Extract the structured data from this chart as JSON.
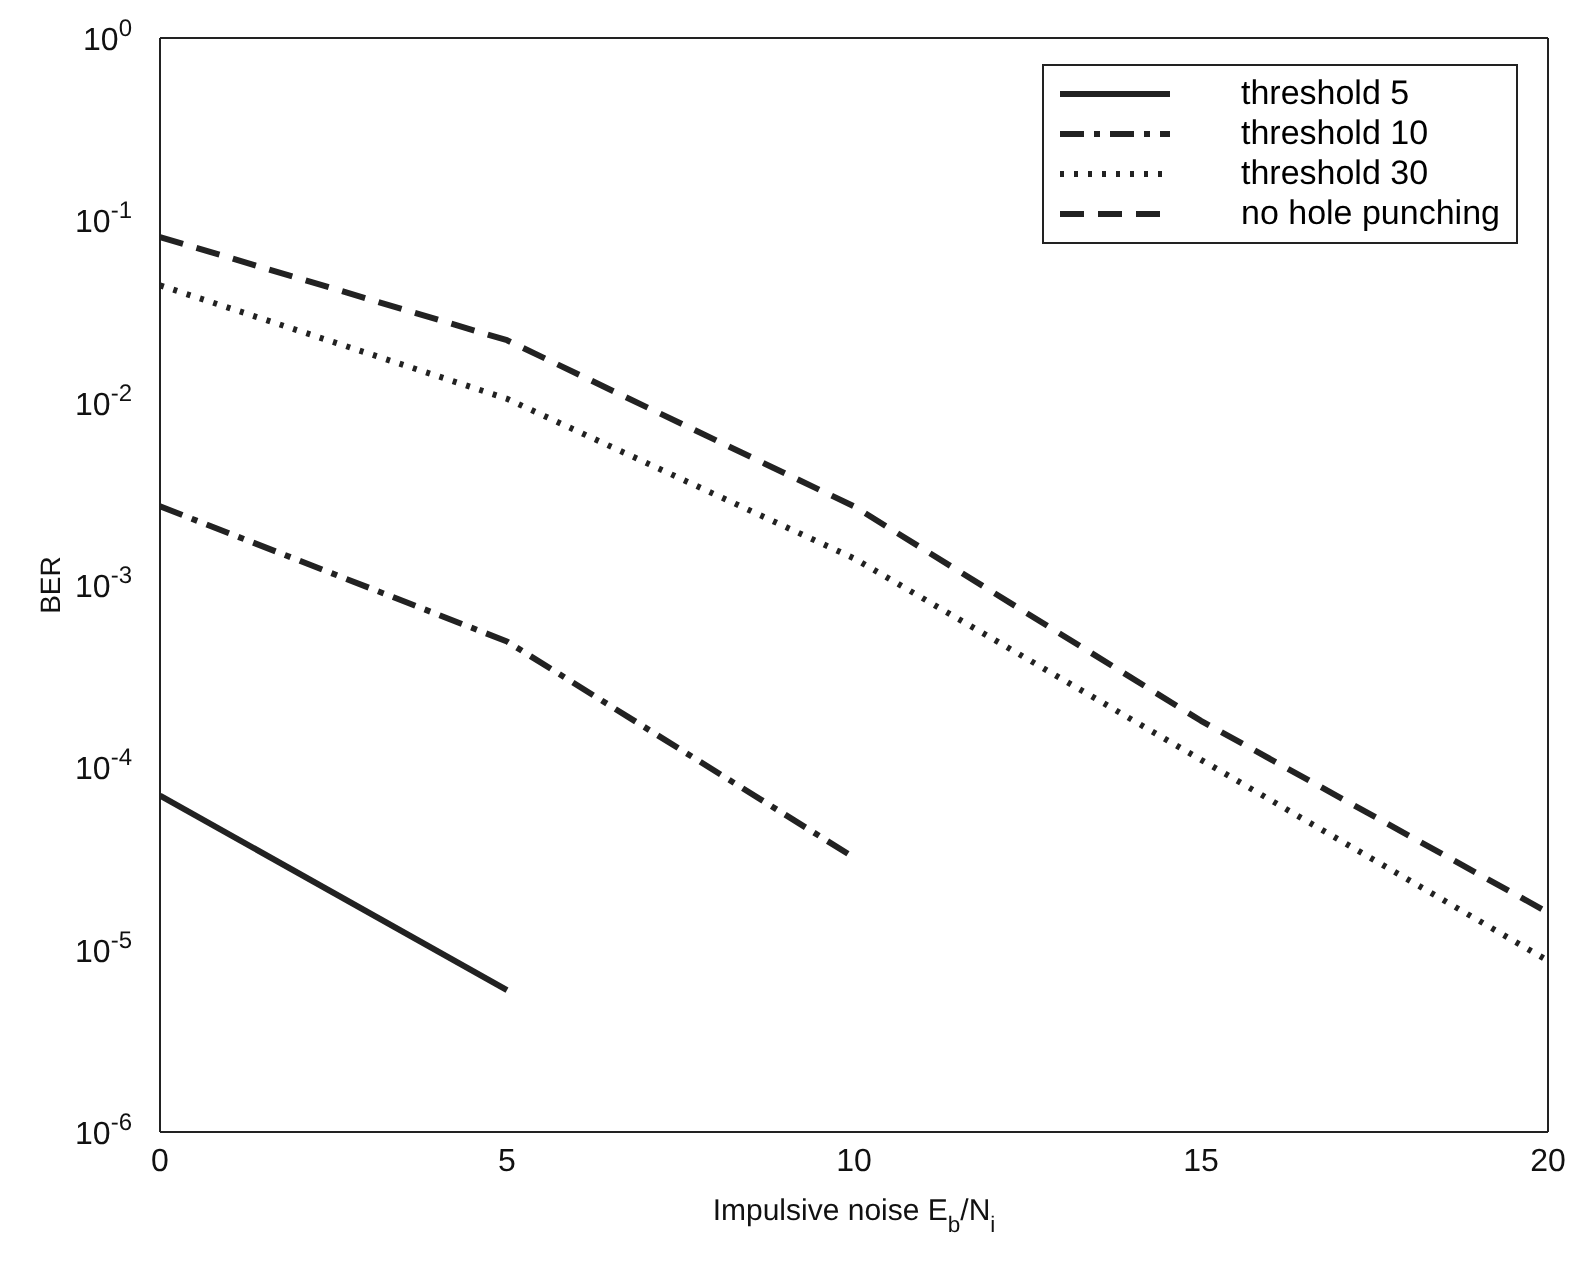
{
  "chart_data": {
    "type": "line",
    "xlabel": "Impulsive noise E$_{b}$/N$_{i}$",
    "ylabel": "BER",
    "log": "y",
    "xlim": [
      0,
      20
    ],
    "xticks": [
      0,
      5,
      10,
      15,
      20
    ],
    "ylim": [
      1e-06,
      1
    ],
    "yticks": [
      {
        "value": 1e-06,
        "label": "10$^{-6}$"
      },
      {
        "value": 1e-05,
        "label": "10$^{-5}$"
      },
      {
        "value": 0.0001,
        "label": "10$^{-4}$"
      },
      {
        "value": 0.001,
        "label": "10$^{-3}$"
      },
      {
        "value": 0.01,
        "label": "10$^{-2}$"
      },
      {
        "value": 0.1,
        "label": "10$^{-1}$"
      },
      {
        "value": 1,
        "label": "10$^{0}$"
      }
    ],
    "legend": "top right",
    "grid": false,
    "marker": "none",
    "series": [
      {
        "name": "threshold 5",
        "color": "#222222",
        "line_style": "solid",
        "x": [
          0,
          5
        ],
        "values": [
          7e-05,
          6e-06
        ]
      },
      {
        "name": "threshold 10",
        "color": "#222222",
        "line_style": "dashdot",
        "x": [
          0,
          5,
          10
        ],
        "values": [
          0.0027,
          0.00049,
          3.2e-05
        ]
      },
      {
        "name": "threshold 30",
        "color": "#222222",
        "line_style": "dotted",
        "x": [
          0,
          5,
          10,
          15,
          20
        ],
        "values": [
          0.044,
          0.0105,
          0.0014,
          0.00011,
          8.7e-06
        ]
      },
      {
        "name": "no hole punching",
        "color": "#222222",
        "line_style": "dashed",
        "x": [
          0,
          5,
          10,
          15,
          20
        ],
        "values": [
          0.081,
          0.022,
          0.0027,
          0.00018,
          1.6e-05
        ]
      }
    ]
  }
}
